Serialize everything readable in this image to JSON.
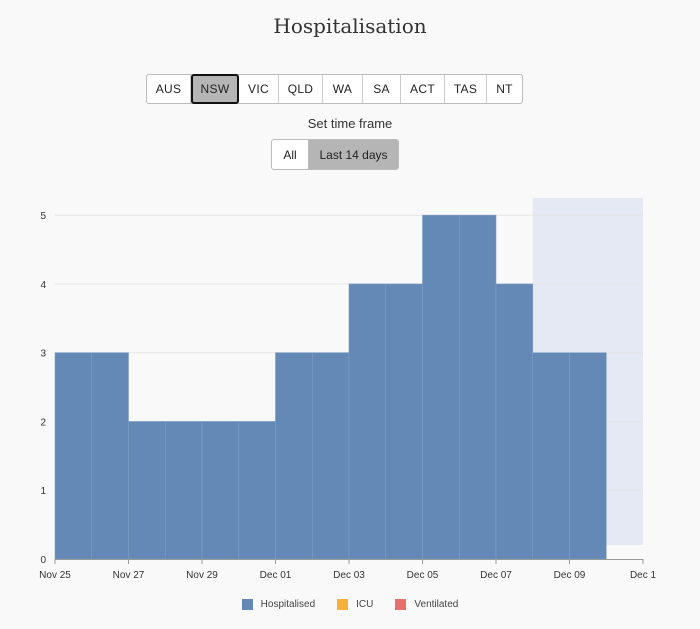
{
  "title": "Hospitalisation",
  "regions": [
    {
      "label": "AUS",
      "active": false
    },
    {
      "label": "NSW",
      "active": true
    },
    {
      "label": "VIC",
      "active": false
    },
    {
      "label": "QLD",
      "active": false
    },
    {
      "label": "WA",
      "active": false
    },
    {
      "label": "SA",
      "active": false
    },
    {
      "label": "ACT",
      "active": false
    },
    {
      "label": "TAS",
      "active": false
    },
    {
      "label": "NT",
      "active": false
    }
  ],
  "timeframe": {
    "label": "Set time frame",
    "options": [
      {
        "label": "All",
        "active": false
      },
      {
        "label": "Last 14 days",
        "active": true
      }
    ]
  },
  "legend": [
    {
      "label": "Hospitalised",
      "color": "#6489b6"
    },
    {
      "label": "ICU",
      "color": "#f5b13a"
    },
    {
      "label": "Ventilated",
      "color": "#e8706c"
    }
  ],
  "chart_data": {
    "type": "bar",
    "categories": [
      "Nov 25",
      "Nov 26",
      "Nov 27",
      "Nov 28",
      "Nov 29",
      "Nov 30",
      "Dec 01",
      "Dec 02",
      "Dec 03",
      "Dec 04",
      "Dec 05",
      "Dec 06",
      "Dec 07",
      "Dec 08",
      "Dec 09",
      "Dec 10"
    ],
    "series": [
      {
        "name": "Hospitalised",
        "values": [
          3,
          3,
          2,
          2,
          2,
          2,
          3,
          3,
          4,
          4,
          5,
          5,
          4,
          3,
          3,
          null
        ]
      }
    ],
    "x_tick_labels": [
      "Nov 25",
      "Nov 27",
      "Nov 29",
      "Dec 01",
      "Dec 03",
      "Dec 05",
      "Dec 07",
      "Dec 09",
      "Dec 1"
    ],
    "ylim": [
      0,
      5.25
    ],
    "yticks": [
      0,
      1,
      2,
      3,
      4,
      5
    ],
    "shaded_period": {
      "from": "Dec 08",
      "to": "Dec 10"
    },
    "grid": true,
    "legend_position": "bottom"
  }
}
